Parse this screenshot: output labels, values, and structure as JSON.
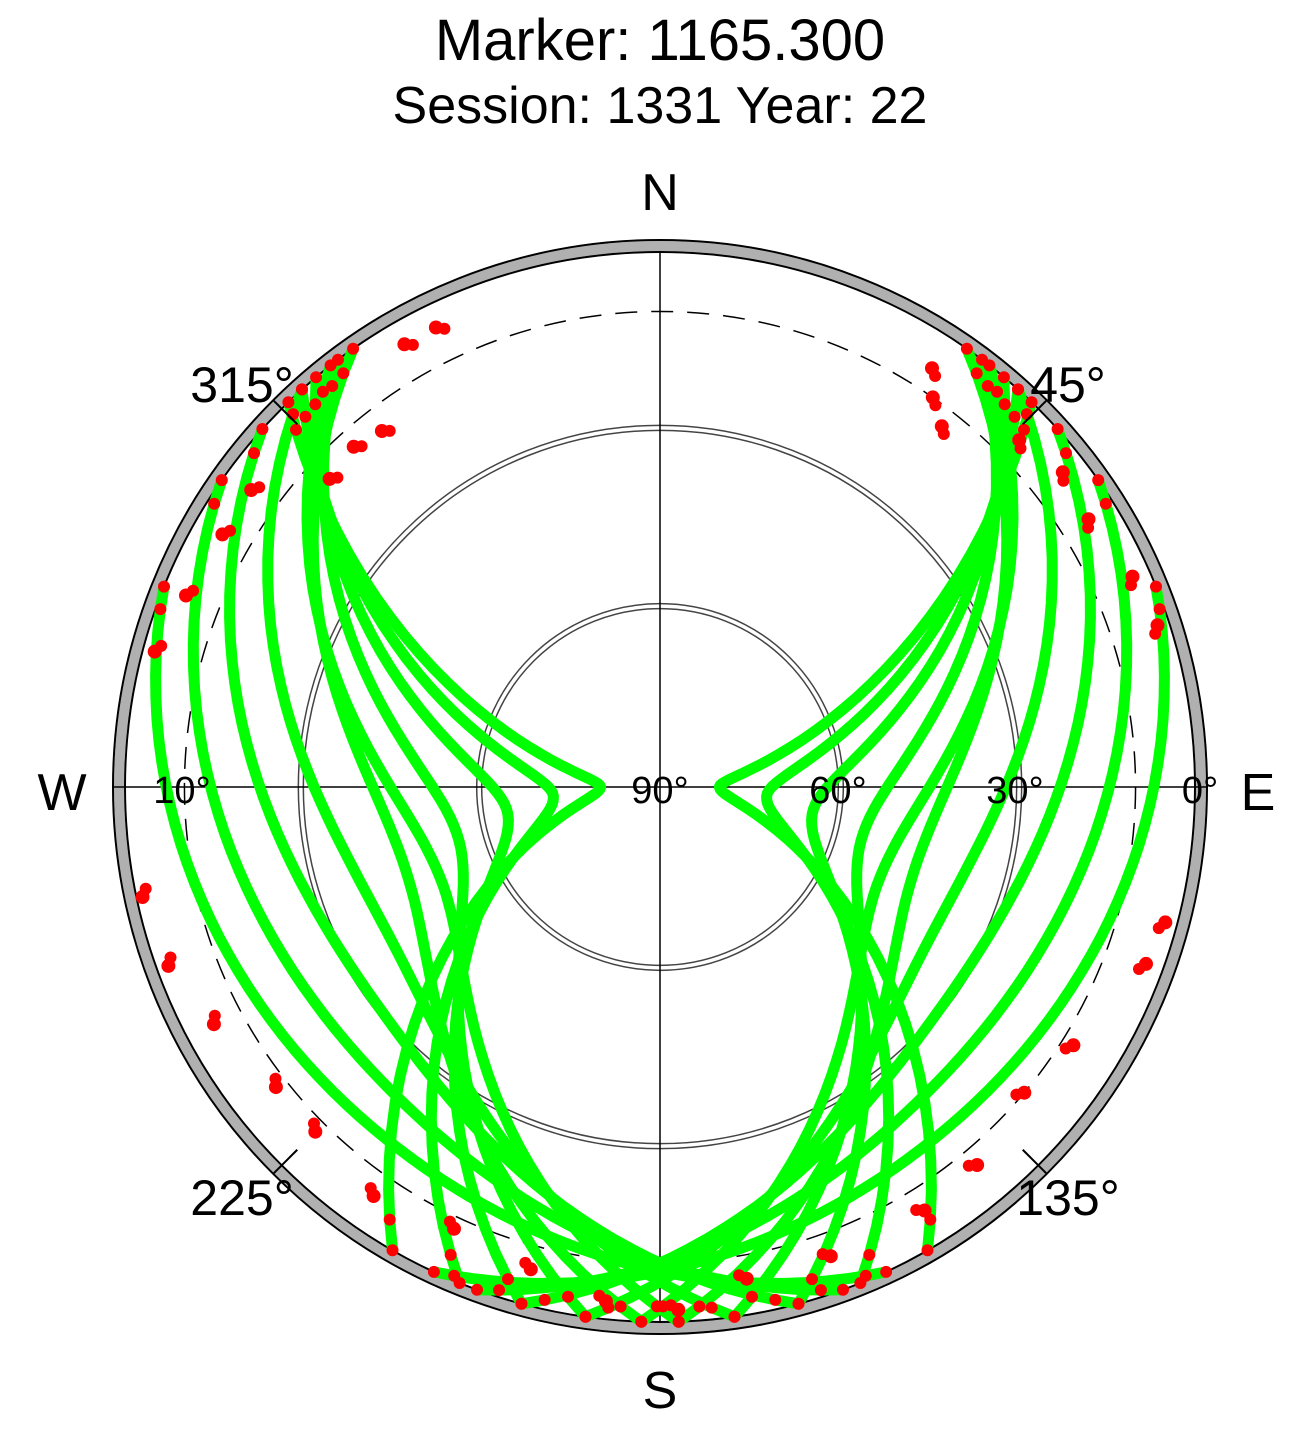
{
  "chart_data": {
    "type": "scatter",
    "subtype": "polar-skyplot",
    "title": "Marker: 1165.300",
    "subtitle": "Session: 1331 Year: 22",
    "compass": {
      "north": "N",
      "south": "S",
      "east": "E",
      "west": "W"
    },
    "azimuth_ticks": [
      {
        "azimuth": 45,
        "label": "45°"
      },
      {
        "azimuth": 135,
        "label": "135°"
      },
      {
        "azimuth": 225,
        "label": "225°"
      },
      {
        "azimuth": 315,
        "label": "315°"
      }
    ],
    "elevation_ticks": [
      {
        "elevation": 0,
        "label": "0°"
      },
      {
        "elevation": 30,
        "label": "30°"
      },
      {
        "elevation": 60,
        "label": "60°"
      },
      {
        "elevation": 90,
        "label": "90°"
      },
      {
        "elevation": 10,
        "label": "10°"
      }
    ],
    "elevation_range": [
      0,
      90
    ],
    "cutoff_elevation": 10,
    "colors": {
      "good": "#00ff00",
      "bad": "#ff0000",
      "horizon": "#b0b0b0",
      "grid": "#000000"
    },
    "series": [
      {
        "name": "",
        "status": "good",
        "color": "#00ff00",
        "peak_azimuth": 108,
        "peak_elevation": 45,
        "start_azimuth": 35,
        "end_azimuth": 178
      },
      {
        "name": "",
        "status": "good",
        "color": "#00ff00",
        "peak_azimuth": 105,
        "peak_elevation": 55,
        "start_azimuth": 37,
        "end_azimuth": 172
      },
      {
        "name": "",
        "status": "good",
        "color": "#00ff00",
        "peak_azimuth": 100,
        "peak_elevation": 64,
        "start_azimuth": 40,
        "end_azimuth": 165
      },
      {
        "name": "",
        "status": "good",
        "color": "#00ff00",
        "peak_azimuth": 95,
        "peak_elevation": 72,
        "start_azimuth": 42,
        "end_azimuth": 158
      },
      {
        "name": "",
        "status": "good",
        "color": "#00ff00",
        "peak_azimuth": 90,
        "peak_elevation": 80,
        "start_azimuth": 44,
        "end_azimuth": 150
      },
      {
        "name": "",
        "status": "good",
        "color": "#00ff00",
        "peak_azimuth": 118,
        "peak_elevation": 38,
        "start_azimuth": 42,
        "end_azimuth": 188
      },
      {
        "name": "",
        "status": "good",
        "color": "#00ff00",
        "peak_azimuth": 125,
        "peak_elevation": 30,
        "start_azimuth": 48,
        "end_azimuth": 195
      },
      {
        "name": "",
        "status": "good",
        "color": "#00ff00",
        "peak_azimuth": 132,
        "peak_elevation": 22,
        "start_azimuth": 55,
        "end_azimuth": 200
      },
      {
        "name": "",
        "status": "good",
        "color": "#00ff00",
        "peak_azimuth": 140,
        "peak_elevation": 15,
        "start_azimuth": 68,
        "end_azimuth": 205
      },
      {
        "name": "",
        "status": "good",
        "color": "#00ff00",
        "peak_azimuth": 112,
        "peak_elevation": 50,
        "start_azimuth": 38,
        "end_azimuth": 182
      },
      {
        "name": "",
        "status": "good",
        "color": "#00ff00",
        "peak_azimuth": 252,
        "peak_elevation": 45,
        "start_azimuth": 325,
        "end_azimuth": 182
      },
      {
        "name": "",
        "status": "good",
        "color": "#00ff00",
        "peak_azimuth": 255,
        "peak_elevation": 55,
        "start_azimuth": 323,
        "end_azimuth": 188
      },
      {
        "name": "",
        "status": "good",
        "color": "#00ff00",
        "peak_azimuth": 260,
        "peak_elevation": 64,
        "start_azimuth": 320,
        "end_azimuth": 195
      },
      {
        "name": "",
        "status": "good",
        "color": "#00ff00",
        "peak_azimuth": 265,
        "peak_elevation": 72,
        "start_azimuth": 318,
        "end_azimuth": 202
      },
      {
        "name": "",
        "status": "good",
        "color": "#00ff00",
        "peak_azimuth": 270,
        "peak_elevation": 80,
        "start_azimuth": 316,
        "end_azimuth": 210
      },
      {
        "name": "",
        "status": "good",
        "color": "#00ff00",
        "peak_azimuth": 242,
        "peak_elevation": 38,
        "start_azimuth": 318,
        "end_azimuth": 172
      },
      {
        "name": "",
        "status": "good",
        "color": "#00ff00",
        "peak_azimuth": 235,
        "peak_elevation": 30,
        "start_azimuth": 312,
        "end_azimuth": 165
      },
      {
        "name": "",
        "status": "good",
        "color": "#00ff00",
        "peak_azimuth": 228,
        "peak_elevation": 22,
        "start_azimuth": 305,
        "end_azimuth": 160
      },
      {
        "name": "",
        "status": "good",
        "color": "#00ff00",
        "peak_azimuth": 220,
        "peak_elevation": 15,
        "start_azimuth": 292,
        "end_azimuth": 155
      },
      {
        "name": "",
        "status": "good",
        "color": "#00ff00",
        "peak_azimuth": 248,
        "peak_elevation": 50,
        "start_azimuth": 322,
        "end_azimuth": 178
      }
    ],
    "low_elevation_points": [
      {
        "azimuth": 33,
        "elevation": 6
      },
      {
        "azimuth": 35,
        "elevation": 10
      },
      {
        "azimuth": 38,
        "elevation": 13
      },
      {
        "azimuth": 46,
        "elevation": 6
      },
      {
        "azimuth": 52,
        "elevation": 4
      },
      {
        "azimuth": 58,
        "elevation": 5
      },
      {
        "azimuth": 66,
        "elevation": 3
      },
      {
        "azimuth": 72,
        "elevation": 2
      },
      {
        "azimuth": 105,
        "elevation": 2
      },
      {
        "azimuth": 110,
        "elevation": 3
      },
      {
        "azimuth": 122,
        "elevation": 8
      },
      {
        "azimuth": 130,
        "elevation": 10
      },
      {
        "azimuth": 140,
        "elevation": 7
      },
      {
        "azimuth": 148,
        "elevation": 6
      },
      {
        "azimuth": 160,
        "elevation": 6
      },
      {
        "azimuth": 170,
        "elevation": 6
      },
      {
        "azimuth": 178,
        "elevation": 2
      },
      {
        "azimuth": 186,
        "elevation": 3
      },
      {
        "azimuth": 195,
        "elevation": 6
      },
      {
        "azimuth": 205,
        "elevation": 8
      },
      {
        "azimuth": 215,
        "elevation": 6
      },
      {
        "azimuth": 225,
        "elevation": 8
      },
      {
        "azimuth": 232,
        "elevation": 8
      },
      {
        "azimuth": 242,
        "elevation": 5
      },
      {
        "azimuth": 250,
        "elevation": 2
      },
      {
        "azimuth": 258,
        "elevation": 1
      },
      {
        "azimuth": 285,
        "elevation": 2
      },
      {
        "azimuth": 292,
        "elevation": 4
      },
      {
        "azimuth": 300,
        "elevation": 5
      },
      {
        "azimuth": 306,
        "elevation": 5
      },
      {
        "azimuth": 313,
        "elevation": 14
      },
      {
        "azimuth": 318,
        "elevation": 13
      },
      {
        "azimuth": 322,
        "elevation": 14
      },
      {
        "azimuth": 330,
        "elevation": 4
      },
      {
        "azimuth": 334,
        "elevation": 4
      }
    ]
  }
}
